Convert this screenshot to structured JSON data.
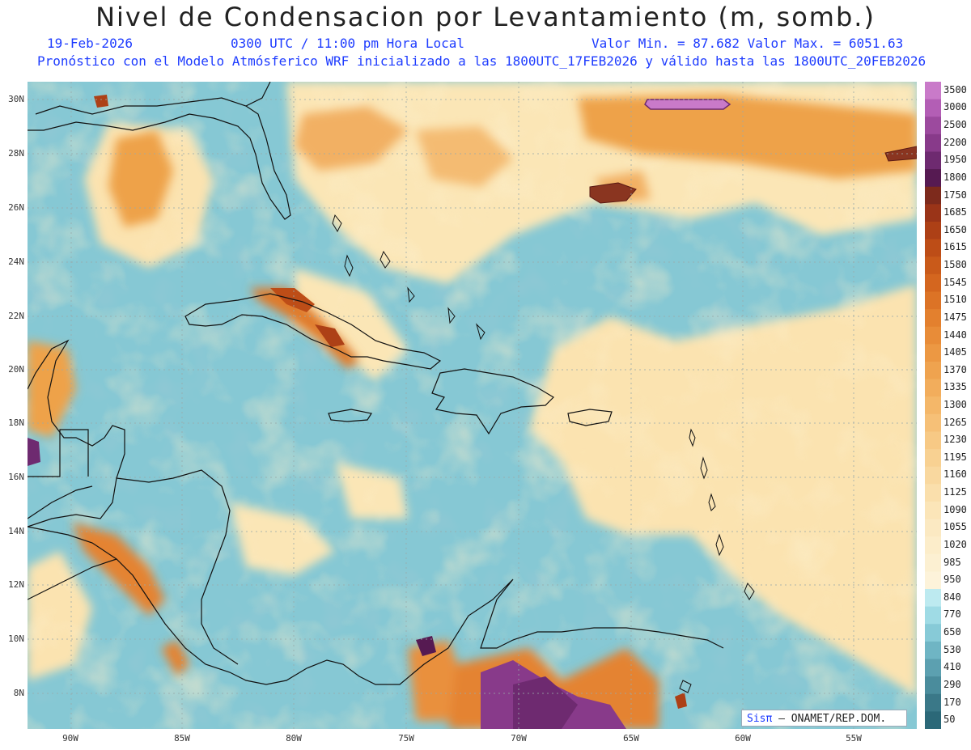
{
  "title": "Nivel de Condensacion por Levantamiento (m, somb.)",
  "header": {
    "date": "19-Feb-2026",
    "time": "0300 UTC / 11:00 pm Hora Local",
    "minmax": "Valor Min. = 87.682  Valor Max. = 6051.63",
    "model_info": "Pronóstico con el Modelo Atmósferico WRF inicializado a las 1800UTC_17FEB2026 y válido hasta las  1800UTC_20FEB2026"
  },
  "lat_labels": [
    "30N",
    "28N",
    "26N",
    "24N",
    "22N",
    "20N",
    "18N",
    "16N",
    "14N",
    "12N",
    "10N",
    "8N"
  ],
  "lon_labels": [
    "90W",
    "85W",
    "80W",
    "75W",
    "70W",
    "65W",
    "60W",
    "55W"
  ],
  "legend": {
    "labels": [
      "3500",
      "3000",
      "2500",
      "2200",
      "1950",
      "1800",
      "1750",
      "1685",
      "1650",
      "1615",
      "1580",
      "1545",
      "1510",
      "1475",
      "1440",
      "1405",
      "1370",
      "1335",
      "1300",
      "1265",
      "1230",
      "1195",
      "1160",
      "1125",
      "1090",
      "1055",
      "1020",
      "985",
      "950",
      "840",
      "770",
      "650",
      "530",
      "410",
      "290",
      "170",
      "50"
    ],
    "colors": [
      "#c97ac9",
      "#b35eb5",
      "#9c4a9e",
      "#883a8a",
      "#6e2a70",
      "#561a52",
      "#7d2a1c",
      "#9a3418",
      "#ad4016",
      "#bd4d17",
      "#c95a1a",
      "#d4661f",
      "#dc7326",
      "#e3802e",
      "#e88c38",
      "#ec9843",
      "#efa34f",
      "#f2ad5c",
      "#f4b769",
      "#f6c077",
      "#f7c985",
      "#f8d192",
      "#f9d89f",
      "#fadfac",
      "#fbe5b8",
      "#fbe9c2",
      "#fcedca",
      "#fcf0d2",
      "#fdf3da",
      "#bdeaf0",
      "#9fdbe5",
      "#87cad7",
      "#6fb5c4",
      "#5ca0b0",
      "#4a8c9c",
      "#3a7888",
      "#2b6878"
    ]
  },
  "credit": {
    "sis": "Sisπ",
    "org": " – ONAMET/REP.DOM."
  }
}
